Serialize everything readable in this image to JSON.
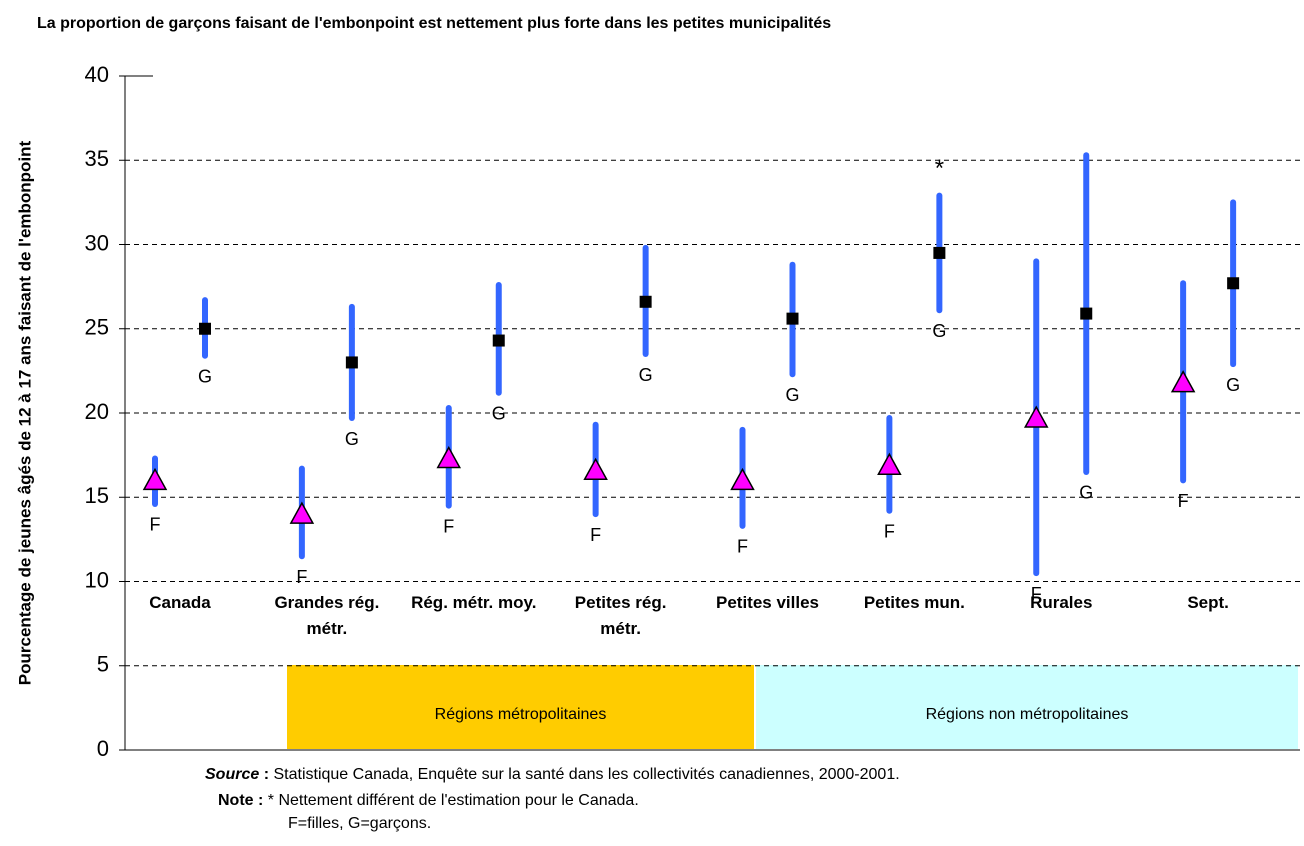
{
  "chart_data": {
    "type": "errorbar",
    "title": "La proportion de garçons faisant de l'embonpoint est nettement plus forte dans les petites municipalités",
    "y_label": "Pourcentage de jeunes âgés de 12 à 17 ans faisant de l'embonpoint",
    "categories": [
      "Canada",
      "Grandes rég. métr.",
      "Rég. métr. moy.",
      "Petites rég. métr.",
      "Petites villes",
      "Petites mun.",
      "Rurales",
      "Sept."
    ],
    "series": [
      {
        "name": "F",
        "color": "#ff00ff",
        "bar_color": "#3366ff",
        "marker": "triangle",
        "values": [
          16.0,
          14.0,
          17.3,
          16.6,
          16.0,
          16.9,
          19.7,
          21.8
        ],
        "low": [
          14.6,
          11.5,
          14.5,
          14.0,
          13.3,
          14.2,
          10.5,
          16.0
        ],
        "high": [
          17.3,
          16.7,
          20.3,
          19.3,
          19.0,
          19.7,
          29.0,
          27.7
        ]
      },
      {
        "name": "G",
        "color": "#000000",
        "bar_color": "#3366ff",
        "marker": "square",
        "values": [
          25.0,
          23.0,
          24.3,
          26.6,
          25.6,
          29.5,
          25.9,
          27.7
        ],
        "low": [
          23.4,
          19.7,
          21.2,
          23.5,
          22.3,
          26.1,
          16.5,
          22.9
        ],
        "high": [
          26.7,
          26.3,
          27.6,
          29.8,
          28.8,
          32.9,
          35.3,
          32.5
        ]
      }
    ],
    "annotation": "*",
    "regions": [
      {
        "label": "Régions métropolitaines",
        "color": "#ffcc00"
      },
      {
        "label": "Régions non métropolitaines",
        "color": "#ccffff"
      }
    ],
    "ylim": [
      0,
      40
    ],
    "yticks": [
      0,
      5,
      10,
      15,
      20,
      25,
      30,
      35,
      40
    ],
    "grid": true
  },
  "notes": {
    "source_label": "Source",
    "source_colon": " :",
    "source_text": "Statistique Canada, Enquête sur la santé dans les collectivités canadiennes, 2000-2001.",
    "note_label": "Note :",
    "note_text": "* Nettement différent de l'estimation pour le Canada.",
    "legend_text": "F=filles, G=garçons."
  }
}
